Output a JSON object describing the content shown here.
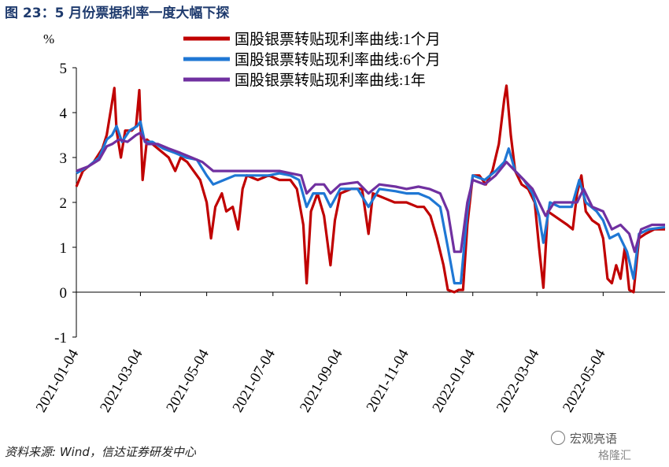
{
  "title": "图 23：5 月份票据利率一度大幅下探",
  "source": "资料来源: Wind，信达证券研发中心",
  "watermark": "宏观亮语",
  "watermark2": "格隆汇",
  "chart_data": {
    "type": "line",
    "ylabel": "%",
    "ylim": [
      -1,
      5
    ],
    "yticks": [
      -1,
      0,
      1,
      2,
      3,
      4,
      5
    ],
    "xlim": [
      "2021-01-04",
      "2022-06-30"
    ],
    "xticks": [
      "2021-01-04",
      "2021-03-04",
      "2021-05-04",
      "2021-07-04",
      "2021-09-04",
      "2021-11-04",
      "2022-01-04",
      "2022-03-04",
      "2022-05-04"
    ],
    "legend_position": "top-right",
    "series": [
      {
        "name": "国股银票转贴现利率曲线:1个月",
        "color": "#c00000",
        "points": [
          [
            "2021-01-04",
            2.35
          ],
          [
            "2021-01-10",
            2.7
          ],
          [
            "2021-01-20",
            2.9
          ],
          [
            "2021-01-28",
            3.2
          ],
          [
            "2021-02-01",
            3.5
          ],
          [
            "2021-02-05",
            4.1
          ],
          [
            "2021-02-08",
            4.55
          ],
          [
            "2021-02-10",
            3.6
          ],
          [
            "2021-02-14",
            3.0
          ],
          [
            "2021-02-18",
            3.6
          ],
          [
            "2021-02-24",
            3.6
          ],
          [
            "2021-02-28",
            3.7
          ],
          [
            "2021-03-03",
            4.5
          ],
          [
            "2021-03-06",
            2.5
          ],
          [
            "2021-03-10",
            3.4
          ],
          [
            "2021-03-20",
            3.2
          ],
          [
            "2021-03-30",
            3.0
          ],
          [
            "2021-04-05",
            2.7
          ],
          [
            "2021-04-10",
            3.0
          ],
          [
            "2021-04-16",
            2.9
          ],
          [
            "2021-04-22",
            2.7
          ],
          [
            "2021-04-28",
            2.5
          ],
          [
            "2021-05-04",
            2.0
          ],
          [
            "2021-05-08",
            1.2
          ],
          [
            "2021-05-12",
            1.9
          ],
          [
            "2021-05-18",
            2.2
          ],
          [
            "2021-05-22",
            1.8
          ],
          [
            "2021-05-28",
            1.9
          ],
          [
            "2021-06-02",
            1.4
          ],
          [
            "2021-06-06",
            2.3
          ],
          [
            "2021-06-10",
            2.6
          ],
          [
            "2021-06-20",
            2.5
          ],
          [
            "2021-06-30",
            2.6
          ],
          [
            "2021-07-10",
            2.5
          ],
          [
            "2021-07-20",
            2.5
          ],
          [
            "2021-07-26",
            2.3
          ],
          [
            "2021-08-01",
            1.5
          ],
          [
            "2021-08-04",
            0.2
          ],
          [
            "2021-08-08",
            1.8
          ],
          [
            "2021-08-14",
            2.2
          ],
          [
            "2021-08-20",
            1.7
          ],
          [
            "2021-08-26",
            0.6
          ],
          [
            "2021-08-30",
            1.6
          ],
          [
            "2021-09-04",
            2.2
          ],
          [
            "2021-09-14",
            2.3
          ],
          [
            "2021-09-24",
            2.3
          ],
          [
            "2021-09-30",
            1.3
          ],
          [
            "2021-10-04",
            2.2
          ],
          [
            "2021-10-14",
            2.1
          ],
          [
            "2021-10-24",
            2.0
          ],
          [
            "2021-11-04",
            2.0
          ],
          [
            "2021-11-14",
            1.9
          ],
          [
            "2021-11-20",
            1.9
          ],
          [
            "2021-11-26",
            1.7
          ],
          [
            "2021-12-02",
            1.2
          ],
          [
            "2021-12-08",
            0.6
          ],
          [
            "2021-12-12",
            0.05
          ],
          [
            "2021-12-18",
            0.0
          ],
          [
            "2021-12-22",
            0.05
          ],
          [
            "2021-12-26",
            0.05
          ],
          [
            "2021-12-30",
            1.5
          ],
          [
            "2022-01-04",
            2.6
          ],
          [
            "2022-01-10",
            2.6
          ],
          [
            "2022-01-16",
            2.4
          ],
          [
            "2022-01-22",
            2.7
          ],
          [
            "2022-01-28",
            3.3
          ],
          [
            "2022-02-02",
            4.3
          ],
          [
            "2022-02-04",
            4.6
          ],
          [
            "2022-02-08",
            3.5
          ],
          [
            "2022-02-12",
            2.7
          ],
          [
            "2022-02-18",
            2.4
          ],
          [
            "2022-02-24",
            2.3
          ],
          [
            "2022-03-02",
            2.0
          ],
          [
            "2022-03-06",
            1.0
          ],
          [
            "2022-03-10",
            0.1
          ],
          [
            "2022-03-14",
            1.8
          ],
          [
            "2022-03-20",
            1.7
          ],
          [
            "2022-03-26",
            1.6
          ],
          [
            "2022-04-01",
            1.5
          ],
          [
            "2022-04-06",
            1.4
          ],
          [
            "2022-04-10",
            2.2
          ],
          [
            "2022-04-14",
            2.6
          ],
          [
            "2022-04-18",
            1.8
          ],
          [
            "2022-04-24",
            1.6
          ],
          [
            "2022-04-30",
            1.5
          ],
          [
            "2022-05-04",
            1.2
          ],
          [
            "2022-05-08",
            0.3
          ],
          [
            "2022-05-12",
            0.2
          ],
          [
            "2022-05-16",
            0.6
          ],
          [
            "2022-05-20",
            0.3
          ],
          [
            "2022-05-24",
            1.0
          ],
          [
            "2022-05-28",
            0.05
          ],
          [
            "2022-06-01",
            0.0
          ],
          [
            "2022-06-06",
            1.2
          ],
          [
            "2022-06-12",
            1.3
          ],
          [
            "2022-06-20",
            1.4
          ],
          [
            "2022-06-30",
            1.4
          ]
        ]
      },
      {
        "name": "国股银票转贴现利率曲线:6个月",
        "color": "#1f77d4",
        "points": [
          [
            "2021-01-04",
            2.65
          ],
          [
            "2021-01-15",
            2.8
          ],
          [
            "2021-01-25",
            3.0
          ],
          [
            "2021-02-01",
            3.4
          ],
          [
            "2021-02-06",
            3.5
          ],
          [
            "2021-02-10",
            3.7
          ],
          [
            "2021-02-15",
            3.35
          ],
          [
            "2021-02-22",
            3.6
          ],
          [
            "2021-03-01",
            3.7
          ],
          [
            "2021-03-04",
            3.8
          ],
          [
            "2021-03-08",
            3.35
          ],
          [
            "2021-03-15",
            3.35
          ],
          [
            "2021-03-25",
            3.2
          ],
          [
            "2021-04-05",
            3.1
          ],
          [
            "2021-04-15",
            3.0
          ],
          [
            "2021-04-25",
            2.95
          ],
          [
            "2021-05-04",
            2.6
          ],
          [
            "2021-05-10",
            2.4
          ],
          [
            "2021-05-20",
            2.5
          ],
          [
            "2021-05-30",
            2.6
          ],
          [
            "2021-06-10",
            2.6
          ],
          [
            "2021-06-20",
            2.6
          ],
          [
            "2021-06-30",
            2.6
          ],
          [
            "2021-07-10",
            2.65
          ],
          [
            "2021-07-20",
            2.6
          ],
          [
            "2021-07-28",
            2.5
          ],
          [
            "2021-08-04",
            1.9
          ],
          [
            "2021-08-10",
            2.2
          ],
          [
            "2021-08-20",
            2.2
          ],
          [
            "2021-08-26",
            1.9
          ],
          [
            "2021-09-04",
            2.3
          ],
          [
            "2021-09-20",
            2.3
          ],
          [
            "2021-09-30",
            1.9
          ],
          [
            "2021-10-10",
            2.3
          ],
          [
            "2021-10-25",
            2.25
          ],
          [
            "2021-11-04",
            2.2
          ],
          [
            "2021-11-15",
            2.2
          ],
          [
            "2021-11-25",
            2.1
          ],
          [
            "2021-12-05",
            1.9
          ],
          [
            "2021-12-12",
            1.0
          ],
          [
            "2021-12-18",
            0.2
          ],
          [
            "2021-12-24",
            0.2
          ],
          [
            "2021-12-30",
            1.8
          ],
          [
            "2022-01-04",
            2.6
          ],
          [
            "2022-01-15",
            2.5
          ],
          [
            "2022-01-25",
            2.7
          ],
          [
            "2022-02-02",
            2.9
          ],
          [
            "2022-02-06",
            3.2
          ],
          [
            "2022-02-12",
            2.7
          ],
          [
            "2022-02-20",
            2.5
          ],
          [
            "2022-02-28",
            2.2
          ],
          [
            "2022-03-06",
            1.7
          ],
          [
            "2022-03-10",
            1.1
          ],
          [
            "2022-03-16",
            2.0
          ],
          [
            "2022-03-25",
            1.9
          ],
          [
            "2022-04-05",
            1.9
          ],
          [
            "2022-04-12",
            2.5
          ],
          [
            "2022-04-18",
            2.0
          ],
          [
            "2022-04-28",
            1.8
          ],
          [
            "2022-05-04",
            1.6
          ],
          [
            "2022-05-10",
            1.2
          ],
          [
            "2022-05-18",
            1.3
          ],
          [
            "2022-05-26",
            0.9
          ],
          [
            "2022-06-01",
            0.3
          ],
          [
            "2022-06-06",
            1.3
          ],
          [
            "2022-06-15",
            1.4
          ],
          [
            "2022-06-30",
            1.45
          ]
        ]
      },
      {
        "name": "国股银票转贴现利率曲线:1年",
        "color": "#7030a0",
        "points": [
          [
            "2021-01-04",
            2.7
          ],
          [
            "2021-01-15",
            2.8
          ],
          [
            "2021-01-25",
            2.95
          ],
          [
            "2021-02-01",
            3.25
          ],
          [
            "2021-02-06",
            3.3
          ],
          [
            "2021-02-12",
            3.4
          ],
          [
            "2021-02-20",
            3.35
          ],
          [
            "2021-02-28",
            3.5
          ],
          [
            "2021-03-04",
            3.55
          ],
          [
            "2021-03-10",
            3.3
          ],
          [
            "2021-03-20",
            3.3
          ],
          [
            "2021-03-30",
            3.2
          ],
          [
            "2021-04-10",
            3.1
          ],
          [
            "2021-04-20",
            3.0
          ],
          [
            "2021-04-30",
            2.9
          ],
          [
            "2021-05-10",
            2.7
          ],
          [
            "2021-05-20",
            2.7
          ],
          [
            "2021-05-30",
            2.7
          ],
          [
            "2021-06-10",
            2.7
          ],
          [
            "2021-06-20",
            2.7
          ],
          [
            "2021-06-30",
            2.7
          ],
          [
            "2021-07-10",
            2.7
          ],
          [
            "2021-07-20",
            2.65
          ],
          [
            "2021-07-30",
            2.6
          ],
          [
            "2021-08-04",
            2.2
          ],
          [
            "2021-08-12",
            2.4
          ],
          [
            "2021-08-20",
            2.4
          ],
          [
            "2021-08-26",
            2.2
          ],
          [
            "2021-09-04",
            2.4
          ],
          [
            "2021-09-20",
            2.45
          ],
          [
            "2021-09-30",
            2.2
          ],
          [
            "2021-10-10",
            2.4
          ],
          [
            "2021-10-25",
            2.35
          ],
          [
            "2021-11-04",
            2.3
          ],
          [
            "2021-11-15",
            2.35
          ],
          [
            "2021-11-25",
            2.3
          ],
          [
            "2021-12-05",
            2.2
          ],
          [
            "2021-12-12",
            1.8
          ],
          [
            "2021-12-18",
            0.9
          ],
          [
            "2021-12-24",
            0.9
          ],
          [
            "2021-12-30",
            2.0
          ],
          [
            "2022-01-04",
            2.5
          ],
          [
            "2022-01-15",
            2.4
          ],
          [
            "2022-01-25",
            2.6
          ],
          [
            "2022-02-04",
            2.9
          ],
          [
            "2022-02-12",
            2.7
          ],
          [
            "2022-02-20",
            2.5
          ],
          [
            "2022-02-28",
            2.3
          ],
          [
            "2022-03-06",
            2.0
          ],
          [
            "2022-03-12",
            1.7
          ],
          [
            "2022-03-20",
            2.0
          ],
          [
            "2022-03-30",
            2.0
          ],
          [
            "2022-04-10",
            2.0
          ],
          [
            "2022-04-16",
            2.3
          ],
          [
            "2022-04-24",
            1.9
          ],
          [
            "2022-05-04",
            1.8
          ],
          [
            "2022-05-12",
            1.4
          ],
          [
            "2022-05-20",
            1.5
          ],
          [
            "2022-05-28",
            1.3
          ],
          [
            "2022-06-02",
            0.9
          ],
          [
            "2022-06-08",
            1.4
          ],
          [
            "2022-06-18",
            1.5
          ],
          [
            "2022-06-30",
            1.5
          ]
        ]
      }
    ]
  }
}
